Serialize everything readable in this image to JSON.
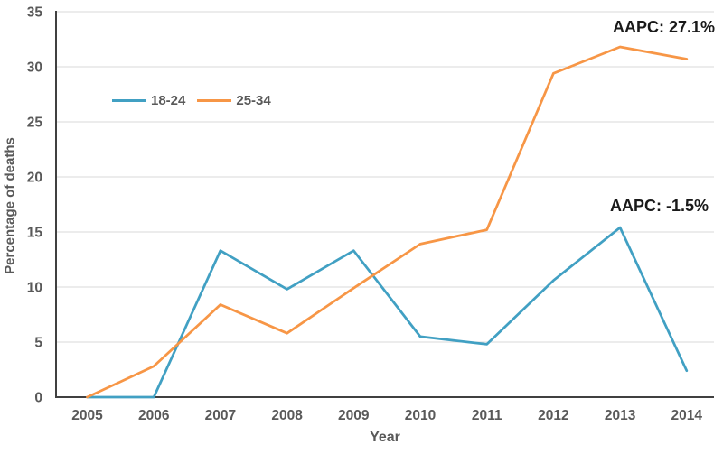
{
  "chart_data": {
    "type": "line",
    "x": [
      "2005",
      "2006",
      "2007",
      "2008",
      "2009",
      "2010",
      "2011",
      "2012",
      "2013",
      "2014"
    ],
    "xlabel": "Year",
    "ylabel": "Percentage of deaths",
    "ylim": [
      0,
      35
    ],
    "ytick_step": 5,
    "grid": "horizontal",
    "gridline_color": "#D9D9D9",
    "axis_color": "#404040",
    "tick_label_color": "#595959",
    "legend_position": "inside-upper-left",
    "series": [
      {
        "name": "18-24",
        "color": "#41A0C3",
        "values": [
          0,
          0,
          13.3,
          9.8,
          13.3,
          5.5,
          4.8,
          10.6,
          15.4,
          2.4
        ]
      },
      {
        "name": "25-34",
        "color": "#F79646",
        "values": [
          0,
          2.8,
          8.4,
          5.8,
          9.9,
          13.9,
          15.2,
          29.4,
          31.8,
          30.7
        ]
      }
    ],
    "annotations": [
      {
        "text": "AAPC: 27.1%",
        "series": "25-34"
      },
      {
        "text": "AAPC: -1.5%",
        "series": "18-24"
      }
    ]
  }
}
